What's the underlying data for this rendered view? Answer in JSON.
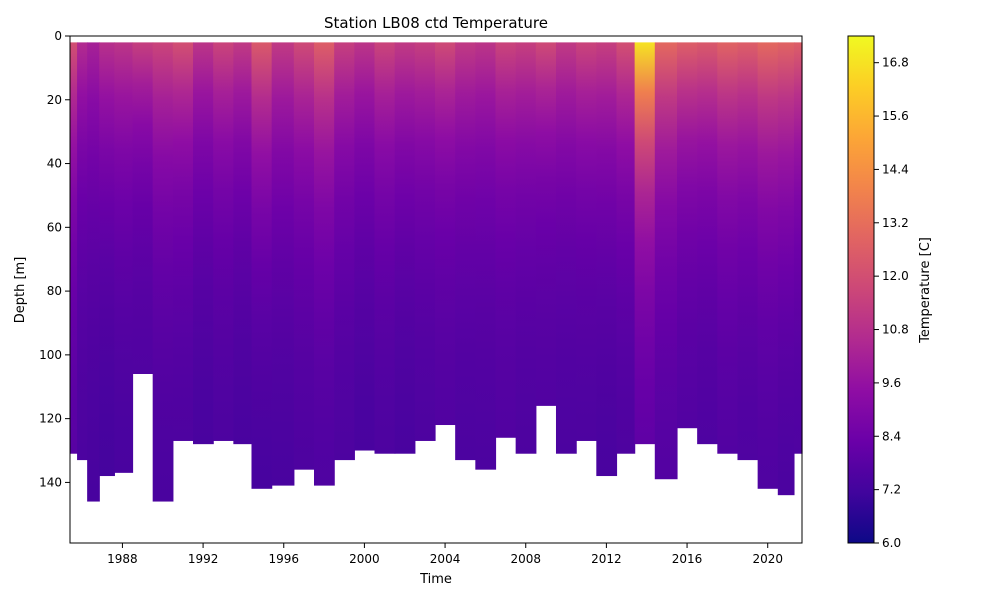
{
  "chart_data": {
    "type": "heatmap",
    "title": "Station LB08 ctd Temperature",
    "xlabel": "Time",
    "ylabel": "Depth [m]",
    "xlim": [
      1985.4,
      2021.7
    ],
    "ylim": [
      159,
      0
    ],
    "y_inverted": true,
    "xticks": [
      1988,
      1992,
      1996,
      2000,
      2004,
      2008,
      2012,
      2016,
      2020
    ],
    "yticks": [
      0,
      20,
      40,
      60,
      80,
      100,
      120,
      140
    ],
    "colorbar": {
      "label": "Temperature [C]",
      "colormap": "plasma",
      "range": [
        6.0,
        17.4
      ],
      "ticks": [
        "6.0",
        "7.2",
        "8.4",
        "9.6",
        "10.8",
        "12.0",
        "13.2",
        "14.4",
        "15.6",
        "16.8"
      ]
    },
    "grid": false,
    "profiles": [
      {
        "time": 1985.5,
        "max_depth": 131,
        "surface_temp": 12.0,
        "deep_temp": 7.6
      },
      {
        "time": 1986.0,
        "max_depth": 133,
        "surface_temp": 10.6,
        "deep_temp": 7.3
      },
      {
        "time": 1986.5,
        "max_depth": 146,
        "surface_temp": 10.2,
        "deep_temp": 7.2
      },
      {
        "time": 1987.2,
        "max_depth": 138,
        "surface_temp": 10.8,
        "deep_temp": 7.1
      },
      {
        "time": 1988.0,
        "max_depth": 137,
        "surface_temp": 11.0,
        "deep_temp": 7.2
      },
      {
        "time": 1989.0,
        "max_depth": 106,
        "surface_temp": 11.4,
        "deep_temp": 7.4
      },
      {
        "time": 1990.0,
        "max_depth": 146,
        "surface_temp": 11.6,
        "deep_temp": 7.2
      },
      {
        "time": 1991.0,
        "max_depth": 127,
        "surface_temp": 12.0,
        "deep_temp": 7.3
      },
      {
        "time": 1992.0,
        "max_depth": 128,
        "surface_temp": 11.0,
        "deep_temp": 7.2
      },
      {
        "time": 1993.0,
        "max_depth": 127,
        "surface_temp": 11.6,
        "deep_temp": 7.3
      },
      {
        "time": 1994.0,
        "max_depth": 128,
        "surface_temp": 11.2,
        "deep_temp": 7.2
      },
      {
        "time": 1994.8,
        "max_depth": 142,
        "surface_temp": 12.4,
        "deep_temp": 7.1
      },
      {
        "time": 1996.0,
        "max_depth": 141,
        "surface_temp": 11.2,
        "deep_temp": 7.2
      },
      {
        "time": 1997.0,
        "max_depth": 136,
        "surface_temp": 11.8,
        "deep_temp": 7.3
      },
      {
        "time": 1998.0,
        "max_depth": 141,
        "surface_temp": 12.6,
        "deep_temp": 7.3
      },
      {
        "time": 1999.0,
        "max_depth": 133,
        "surface_temp": 11.4,
        "deep_temp": 7.3
      },
      {
        "time": 2000.0,
        "max_depth": 130,
        "surface_temp": 11.0,
        "deep_temp": 7.2
      },
      {
        "time": 2001.0,
        "max_depth": 131,
        "surface_temp": 11.6,
        "deep_temp": 7.3
      },
      {
        "time": 2002.0,
        "max_depth": 131,
        "surface_temp": 11.2,
        "deep_temp": 7.2
      },
      {
        "time": 2003.0,
        "max_depth": 127,
        "surface_temp": 11.4,
        "deep_temp": 7.3
      },
      {
        "time": 2004.0,
        "max_depth": 122,
        "surface_temp": 11.8,
        "deep_temp": 7.4
      },
      {
        "time": 2005.0,
        "max_depth": 133,
        "surface_temp": 11.2,
        "deep_temp": 7.3
      },
      {
        "time": 2006.0,
        "max_depth": 136,
        "surface_temp": 11.0,
        "deep_temp": 7.3
      },
      {
        "time": 2007.0,
        "max_depth": 126,
        "surface_temp": 11.6,
        "deep_temp": 7.4
      },
      {
        "time": 2008.0,
        "max_depth": 131,
        "surface_temp": 11.4,
        "deep_temp": 7.3
      },
      {
        "time": 2009.0,
        "max_depth": 116,
        "surface_temp": 11.8,
        "deep_temp": 7.4
      },
      {
        "time": 2010.0,
        "max_depth": 131,
        "surface_temp": 11.2,
        "deep_temp": 7.3
      },
      {
        "time": 2011.0,
        "max_depth": 127,
        "surface_temp": 11.6,
        "deep_temp": 7.3
      },
      {
        "time": 2012.0,
        "max_depth": 138,
        "surface_temp": 11.4,
        "deep_temp": 7.2
      },
      {
        "time": 2013.0,
        "max_depth": 131,
        "surface_temp": 12.0,
        "deep_temp": 7.3
      },
      {
        "time": 2013.8,
        "max_depth": 128,
        "surface_temp": 16.8,
        "deep_temp": 7.6
      },
      {
        "time": 2015.0,
        "max_depth": 139,
        "surface_temp": 13.0,
        "deep_temp": 7.4
      },
      {
        "time": 2016.0,
        "max_depth": 123,
        "surface_temp": 12.6,
        "deep_temp": 7.4
      },
      {
        "time": 2017.0,
        "max_depth": 128,
        "surface_temp": 12.4,
        "deep_temp": 7.3
      },
      {
        "time": 2018.0,
        "max_depth": 131,
        "surface_temp": 12.8,
        "deep_temp": 7.4
      },
      {
        "time": 2019.0,
        "max_depth": 133,
        "surface_temp": 12.6,
        "deep_temp": 7.3
      },
      {
        "time": 2020.0,
        "max_depth": 142,
        "surface_temp": 13.0,
        "deep_temp": 7.3
      },
      {
        "time": 2021.0,
        "max_depth": 144,
        "surface_temp": 12.8,
        "deep_temp": 7.2
      },
      {
        "time": 2021.6,
        "max_depth": 131,
        "surface_temp": 12.6,
        "deep_temp": 7.3
      }
    ]
  }
}
